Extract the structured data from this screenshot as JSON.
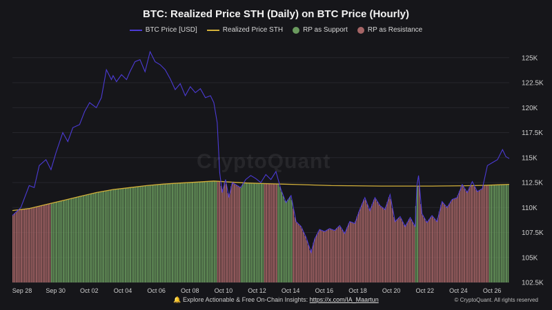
{
  "header": {
    "title": "BTC: Realized Price STH (Daily) on BTC Price (Hourly)"
  },
  "legend": {
    "items": [
      {
        "label": "BTC Price [USD]",
        "kind": "line",
        "color": "#4c3bd6"
      },
      {
        "label": "Realized Price STH",
        "kind": "line",
        "color": "#d4b13a"
      },
      {
        "label": "RP as Support",
        "kind": "dot",
        "color": "#6a9a5e"
      },
      {
        "label": "RP as Resistance",
        "kind": "dot",
        "color": "#a56566"
      }
    ]
  },
  "watermark": "CryptoQuant",
  "footer": {
    "bell_icon": "bell-icon",
    "text": "Explore Actionable & Free On-Chain Insights:",
    "link": "https://x.com/IA_Maartun",
    "credit": "© CryptoQuant. All rights reserved"
  },
  "colors": {
    "background": "#16161a",
    "grid": "#26262c",
    "support": "#6a9a5e",
    "resistance": "#a56566",
    "price": "#4c3bd6",
    "realized": "#d4b13a"
  },
  "chart_data": {
    "type": "line",
    "title": "BTC: Realized Price STH (Daily) on BTC Price (Hourly)",
    "xlabel": "",
    "ylabel": "",
    "ylim": [
      102500,
      126500
    ],
    "y_ticks": [
      102500,
      105000,
      107500,
      110000,
      112500,
      115000,
      117500,
      120000,
      122500,
      125000
    ],
    "y_tick_labels": [
      "102.5K",
      "105K",
      "107.5K",
      "110K",
      "112.5K",
      "115K",
      "117.5K",
      "120K",
      "122.5K",
      "125K"
    ],
    "x_range_days": [
      0,
      29.6
    ],
    "x_ticks": [
      {
        "day": 0,
        "label": "Sep 28"
      },
      {
        "day": 2,
        "label": "Sep 30"
      },
      {
        "day": 4,
        "label": "Oct 02"
      },
      {
        "day": 6,
        "label": "Oct 04"
      },
      {
        "day": 8,
        "label": "Oct 06"
      },
      {
        "day": 10,
        "label": "Oct 08"
      },
      {
        "day": 12,
        "label": "Oct 10"
      },
      {
        "day": 14,
        "label": "Oct 12"
      },
      {
        "day": 16,
        "label": "Oct 14"
      },
      {
        "day": 18,
        "label": "Oct 16"
      },
      {
        "day": 20,
        "label": "Oct 18"
      },
      {
        "day": 22,
        "label": "Oct 20"
      },
      {
        "day": 24,
        "label": "Oct 22"
      },
      {
        "day": 26,
        "label": "Oct 24"
      },
      {
        "day": 28,
        "label": "Oct 26"
      }
    ],
    "series": [
      {
        "name": "BTC Price [USD]",
        "x": [
          0,
          0.5,
          1,
          1.3,
          1.6,
          2,
          2.3,
          2.6,
          3,
          3.3,
          3.6,
          4,
          4.3,
          4.6,
          5,
          5.3,
          5.6,
          5.9,
          6,
          6.2,
          6.5,
          6.8,
          7,
          7.3,
          7.6,
          7.9,
          8.2,
          8.5,
          8.8,
          9.1,
          9.4,
          9.7,
          10,
          10.3,
          10.6,
          10.9,
          11.2,
          11.5,
          11.8,
          12,
          12.2,
          12.35,
          12.5,
          12.7,
          12.9,
          13.1,
          13.3,
          13.6,
          13.9,
          14.2,
          14.5,
          14.8,
          15.1,
          15.4,
          15.7,
          16,
          16.3,
          16.6,
          16.9,
          17.2,
          17.5,
          17.8,
          18,
          18.3,
          18.6,
          18.9,
          19.2,
          19.5,
          19.8,
          20.1,
          20.4,
          20.7,
          21,
          21.3,
          21.6,
          21.9,
          22.2,
          22.5,
          22.8,
          23.1,
          23.4,
          23.7,
          24,
          24.1,
          24.2,
          24.4,
          24.7,
          25,
          25.3,
          25.6,
          25.9,
          26.2,
          26.5,
          26.8,
          27.1,
          27.4,
          27.7,
          28,
          28.3,
          28.6,
          28.9,
          29.2,
          29.4,
          29.6
        ],
        "values": [
          109200,
          110000,
          112200,
          112000,
          114200,
          114800,
          113800,
          115500,
          117500,
          116600,
          118000,
          118300,
          119600,
          120500,
          120000,
          121000,
          123800,
          122800,
          123200,
          122600,
          123300,
          122800,
          123600,
          124600,
          124800,
          123600,
          125600,
          124600,
          124300,
          123800,
          122900,
          121800,
          122400,
          121200,
          122100,
          121500,
          121900,
          121000,
          121200,
          120500,
          118500,
          113500,
          111500,
          112800,
          111000,
          112500,
          112300,
          112000,
          112800,
          113200,
          112900,
          112500,
          113300,
          112800,
          113600,
          111800,
          110500,
          111200,
          108600,
          108100,
          107000,
          105500,
          106800,
          107800,
          107600,
          107900,
          107700,
          108200,
          107400,
          108600,
          108400,
          109800,
          111000,
          109700,
          111000,
          110200,
          109800,
          111300,
          108600,
          109100,
          108100,
          109000,
          108100,
          112200,
          113200,
          109400,
          108500,
          109200,
          108600,
          110600,
          110000,
          110800,
          111000,
          112300,
          111500,
          112600,
          111600,
          111900,
          114200,
          114500,
          114800,
          115800,
          115100,
          114900
        ]
      },
      {
        "name": "Realized Price STH",
        "x": [
          0,
          1,
          2,
          3,
          4,
          5,
          6,
          7,
          8,
          9,
          10,
          11,
          12,
          13,
          14,
          15,
          16,
          17,
          18,
          19,
          20,
          21,
          22,
          23,
          24,
          25,
          26,
          27,
          28,
          29,
          29.6
        ],
        "values": [
          109700,
          109900,
          110300,
          110700,
          111100,
          111500,
          111800,
          112000,
          112200,
          112350,
          112450,
          112550,
          112650,
          112550,
          112450,
          112400,
          112350,
          112300,
          112250,
          112200,
          112180,
          112160,
          112150,
          112150,
          112150,
          112150,
          112160,
          112180,
          112220,
          112280,
          112320
        ]
      }
    ],
    "support_resistance": {
      "support_periods": [
        [
          2.3,
          12.2
        ],
        [
          13.6,
          15.0
        ],
        [
          15.8,
          16.7
        ],
        [
          24.0,
          24.2
        ],
        [
          28.4,
          29.6
        ]
      ],
      "resistance_periods": [
        [
          0,
          2.3
        ],
        [
          12.2,
          13.6
        ],
        [
          15.0,
          15.8
        ],
        [
          16.7,
          24.0
        ],
        [
          24.2,
          28.4
        ]
      ]
    }
  }
}
